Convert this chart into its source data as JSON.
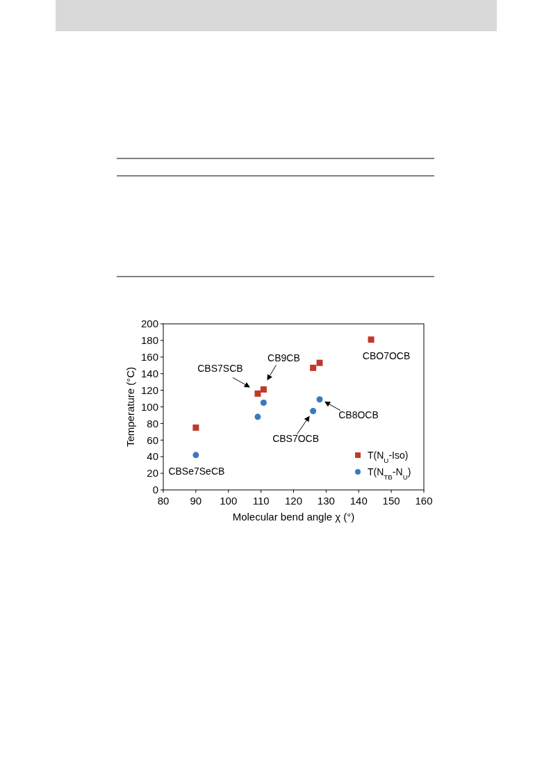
{
  "chart_data": {
    "type": "scatter",
    "xlabel": "Molecular bend angle χ (°)",
    "ylabel": "Temperature (°C)",
    "xlim": [
      80,
      160
    ],
    "xticks": [
      80,
      90,
      100,
      110,
      120,
      130,
      140,
      150,
      160
    ],
    "ylim": [
      0,
      200
    ],
    "yticks": [
      0,
      20,
      40,
      60,
      80,
      100,
      120,
      140,
      160,
      180,
      200
    ],
    "grid": false,
    "legend": "bottom right",
    "series": [
      {
        "name": "T(N$_{U}$-Iso)",
        "color": "#c0392b",
        "marker": "square",
        "x": [
          90,
          109,
          110.8,
          126,
          128,
          143.8
        ],
        "values": [
          75,
          116,
          121,
          147,
          153,
          181
        ]
      },
      {
        "name": "T(N$_{TB}$-N$_{U}$)",
        "color": "#3a78c3",
        "marker": "circle",
        "x": [
          90,
          109,
          110.8,
          126,
          128
        ],
        "values": [
          42,
          88,
          105,
          95,
          109
        ]
      }
    ],
    "annotations": [
      {
        "text": "CBS7SCB",
        "x": 109,
        "y": 116
      },
      {
        "text": "CB9CB",
        "x": 110.8,
        "y": 121
      },
      {
        "text": "CBO7OCB",
        "x": 143.8,
        "y": 181
      },
      {
        "text": "CB8OCB",
        "x": 128,
        "y": 109
      },
      {
        "text": "CBS7OCB",
        "x": 126,
        "y": 95
      },
      {
        "text": "CBSe7SeCB",
        "x": 90,
        "y": 42
      }
    ]
  }
}
